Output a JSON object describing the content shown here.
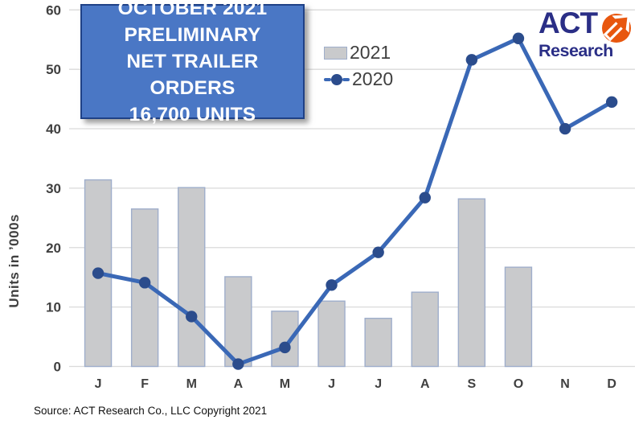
{
  "title_box": {
    "lines": [
      "OCTOBER 2021",
      "PRELIMINARY",
      "NET TRAILER ORDERS",
      "16,700 UNITS"
    ],
    "bg_color": "#4a77c5",
    "border_color": "#1f4186",
    "text_color": "#ffffff"
  },
  "logo": {
    "act": "ACT",
    "research": "Research",
    "navy_color": "#2a2e86",
    "orange_color": "#e8570f"
  },
  "source": {
    "text": "Source: ACT Research Co., LLC  Copyright 2021"
  },
  "chart_data": {
    "type": "bar",
    "title": "October 2021 Preliminary Net Trailer Orders 16,700 Units",
    "categories": [
      "J",
      "F",
      "M",
      "A",
      "M",
      "J",
      "J",
      "A",
      "S",
      "O",
      "N",
      "D"
    ],
    "series": [
      {
        "name": "2021",
        "type": "bar",
        "color": "#c9cacc",
        "border_color": "#9faecb",
        "values": [
          31.4,
          26.5,
          30.1,
          15.1,
          9.3,
          11.0,
          8.1,
          12.5,
          28.2,
          16.7,
          null,
          null
        ]
      },
      {
        "name": "2020",
        "type": "line",
        "color": "#3a68b6",
        "marker_color": "#2b4c8c",
        "values": [
          15.7,
          14.1,
          8.4,
          0.4,
          3.2,
          13.7,
          19.2,
          28.4,
          51.6,
          55.2,
          40.0,
          44.5
        ]
      }
    ],
    "xlabel": "",
    "ylabel": "Units in ’000s",
    "ylim": [
      0,
      60
    ],
    "ytick_step": 10,
    "yticks": [
      0,
      10,
      20,
      30,
      40,
      50,
      60
    ],
    "grid": true,
    "gridline_color": "#dadada",
    "tick_label_color": "#404040",
    "legend_position": "upper-center"
  }
}
